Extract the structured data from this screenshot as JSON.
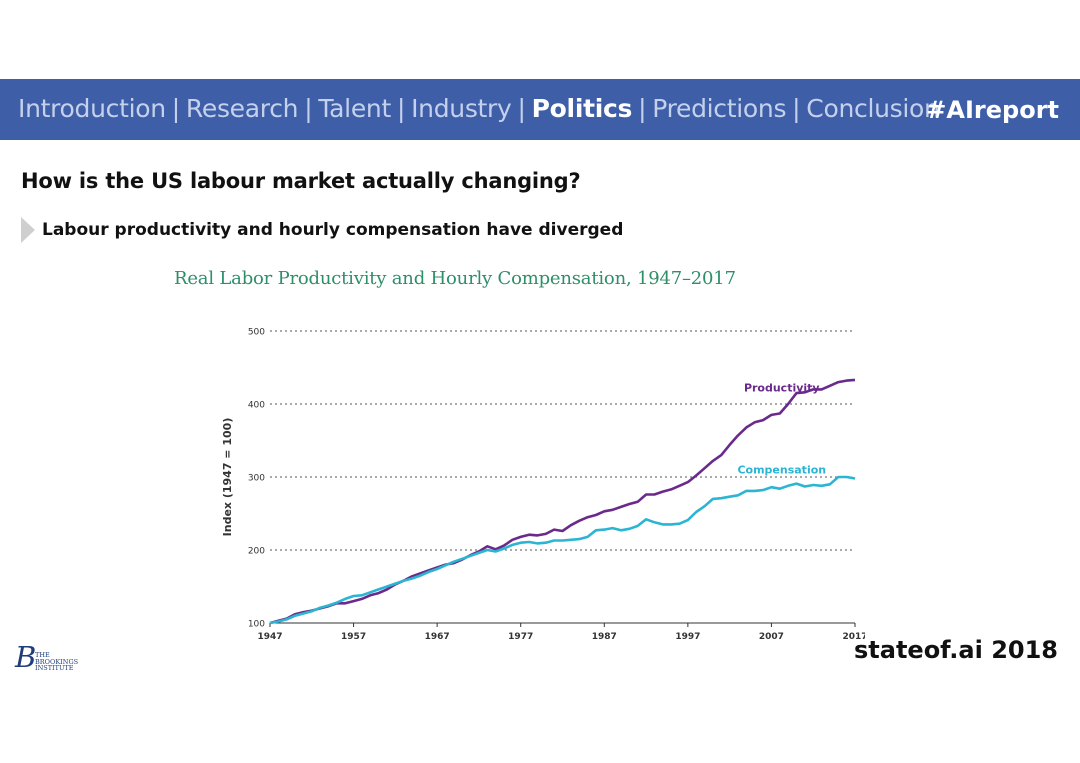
{
  "nav": {
    "items": [
      {
        "label": "Introduction",
        "active": false
      },
      {
        "label": "Research",
        "active": false
      },
      {
        "label": "Talent",
        "active": false
      },
      {
        "label": "Industry",
        "active": false
      },
      {
        "label": "Politics",
        "active": true
      },
      {
        "label": "Predictions",
        "active": false
      },
      {
        "label": "Conclusion",
        "active": false
      }
    ],
    "separator": "|",
    "hashtag": "#AIreport"
  },
  "headline": "How is the US labour market actually changing?",
  "bullet": "Labour productivity and hourly compensation have diverged",
  "logo": {
    "initial": "B",
    "line1": "THE",
    "line2": "BROOKINGS",
    "line3": "INSTITUTE"
  },
  "footer": "stateof.ai 2018",
  "colors": {
    "nav_bg": "#3e5fa8",
    "productivity": "#6a2a8c",
    "compensation": "#2bb5d3",
    "title_green": "#2e8e6a"
  },
  "chart_data": {
    "type": "line",
    "title": "Real Labor Productivity and Hourly Compensation, 1947–2017",
    "xlabel": "",
    "ylabel": "Index (1947 = 100)",
    "xlim": [
      1947,
      2017
    ],
    "ylim": [
      100,
      500
    ],
    "xticks": [
      1947,
      1957,
      1967,
      1977,
      1987,
      1997,
      2007,
      2017
    ],
    "yticks": [
      100,
      200,
      300,
      400,
      500
    ],
    "grid": "horizontal dotted",
    "series": [
      {
        "name": "Productivity",
        "color": "#6a2a8c",
        "x": [
          1947,
          1948,
          1949,
          1950,
          1951,
          1952,
          1953,
          1954,
          1955,
          1956,
          1957,
          1958,
          1959,
          1960,
          1961,
          1962,
          1963,
          1964,
          1965,
          1966,
          1967,
          1968,
          1969,
          1970,
          1971,
          1972,
          1973,
          1974,
          1975,
          1976,
          1977,
          1978,
          1979,
          1980,
          1981,
          1982,
          1983,
          1984,
          1985,
          1986,
          1987,
          1988,
          1989,
          1990,
          1991,
          1992,
          1993,
          1994,
          1995,
          1996,
          1997,
          1998,
          1999,
          2000,
          2001,
          2002,
          2003,
          2004,
          2005,
          2006,
          2007,
          2008,
          2009,
          2010,
          2011,
          2012,
          2013,
          2014,
          2015,
          2016,
          2017
        ],
        "values": [
          100,
          103,
          106,
          112,
          115,
          117,
          120,
          123,
          127,
          127,
          130,
          133,
          138,
          141,
          146,
          153,
          158,
          164,
          168,
          172,
          176,
          180,
          182,
          187,
          193,
          198,
          205,
          201,
          206,
          214,
          218,
          221,
          220,
          222,
          228,
          226,
          234,
          240,
          245,
          248,
          253,
          255,
          259,
          263,
          266,
          276,
          276,
          280,
          283,
          288,
          293,
          302,
          312,
          322,
          330,
          344,
          357,
          368,
          375,
          378,
          385,
          387,
          400,
          415,
          416,
          420,
          420,
          425,
          430,
          432,
          433
        ]
      },
      {
        "name": "Compensation",
        "color": "#2bb5d3",
        "x": [
          1947,
          1948,
          1949,
          1950,
          1951,
          1952,
          1953,
          1954,
          1955,
          1956,
          1957,
          1958,
          1959,
          1960,
          1961,
          1962,
          1963,
          1964,
          1965,
          1966,
          1967,
          1968,
          1969,
          1970,
          1971,
          1972,
          1973,
          1974,
          1975,
          1976,
          1977,
          1978,
          1979,
          1980,
          1981,
          1982,
          1983,
          1984,
          1985,
          1986,
          1987,
          1988,
          1989,
          1990,
          1991,
          1992,
          1993,
          1994,
          1995,
          1996,
          1997,
          1998,
          1999,
          2000,
          2001,
          2002,
          2003,
          2004,
          2005,
          2006,
          2007,
          2008,
          2009,
          2010,
          2011,
          2012,
          2013,
          2014,
          2015,
          2016,
          2017
        ],
        "values": [
          100,
          102,
          105,
          110,
          113,
          116,
          121,
          124,
          128,
          133,
          137,
          138,
          142,
          146,
          150,
          154,
          158,
          161,
          165,
          170,
          174,
          179,
          184,
          188,
          192,
          196,
          200,
          198,
          202,
          207,
          210,
          211,
          209,
          210,
          213,
          213,
          214,
          215,
          218,
          227,
          228,
          230,
          227,
          229,
          233,
          242,
          238,
          235,
          235,
          236,
          241,
          252,
          260,
          270,
          271,
          273,
          275,
          281,
          281,
          282,
          286,
          284,
          288,
          291,
          287,
          289,
          288,
          290,
          300,
          300,
          298
        ]
      }
    ],
    "annotations": [
      {
        "text": "Productivity",
        "series": "Productivity"
      },
      {
        "text": "Compensation",
        "series": "Compensation"
      }
    ]
  }
}
